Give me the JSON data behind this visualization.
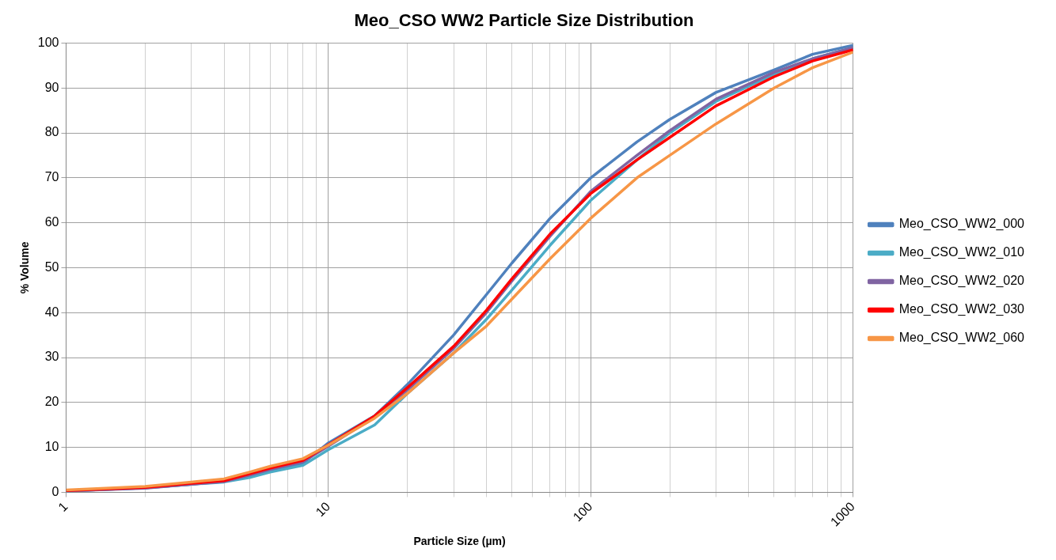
{
  "chart_data": {
    "type": "line",
    "title": "Meo_CSO WW2 Particle Size Distribution",
    "xlabel": "Particle Size (µm)",
    "ylabel": "% Volume",
    "log": "x",
    "x": [
      1,
      2,
      3,
      4,
      5,
      6,
      8,
      10,
      15,
      20,
      30,
      40,
      50,
      70,
      100,
      150,
      200,
      300,
      500,
      700,
      1000
    ],
    "xlim": [
      1,
      1000
    ],
    "xticks": [
      1,
      {
        "value": 2,
        "label": null
      },
      {
        "value": 3,
        "label": null
      },
      {
        "value": 4,
        "label": null
      },
      {
        "value": 5,
        "label": null
      },
      {
        "value": 6,
        "label": null
      },
      {
        "value": 7,
        "label": null
      },
      {
        "value": 8,
        "label": null
      },
      {
        "value": 9,
        "label": null
      },
      10,
      {
        "value": 20,
        "label": null
      },
      {
        "value": 30,
        "label": null
      },
      {
        "value": 40,
        "label": null
      },
      {
        "value": 50,
        "label": null
      },
      {
        "value": 60,
        "label": null
      },
      {
        "value": 70,
        "label": null
      },
      {
        "value": 80,
        "label": null
      },
      {
        "value": 90,
        "label": null
      },
      100,
      {
        "value": 200,
        "label": null
      },
      {
        "value": 300,
        "label": null
      },
      {
        "value": 400,
        "label": null
      },
      {
        "value": 500,
        "label": null
      },
      {
        "value": 600,
        "label": null
      },
      {
        "value": 700,
        "label": null
      },
      {
        "value": 800,
        "label": null
      },
      {
        "value": 900,
        "label": null
      },
      1000
    ],
    "ylim": [
      0,
      100
    ],
    "yticks": [
      0,
      10,
      20,
      30,
      40,
      50,
      60,
      70,
      80,
      90,
      100
    ],
    "grid": true,
    "legend": "right",
    "marker": "none",
    "line_style": "solid",
    "series": [
      {
        "name": "Meo_CSO_WW2_000",
        "color": "#4f81bd",
        "values": [
          0.3,
          1,
          1.8,
          2.5,
          3.5,
          4.8,
          6.5,
          11,
          17,
          24,
          35,
          44,
          51,
          61,
          70,
          78,
          83,
          89,
          94,
          97.5,
          99.5
        ]
      },
      {
        "name": "Meo_CSO_WW2_010",
        "color": "#4bacc6",
        "values": [
          0.3,
          1,
          1.8,
          2.3,
          3.3,
          4.5,
          6,
          9.5,
          15,
          22,
          31,
          38.5,
          45,
          55,
          65,
          74,
          80,
          87,
          93,
          96.5,
          99
        ]
      },
      {
        "name": "Meo_CSO_WW2_020",
        "color": "#8064a2",
        "values": [
          0.3,
          0.9,
          1.8,
          2.4,
          3.8,
          5.1,
          6.8,
          10.3,
          16.8,
          22.8,
          32,
          40,
          47,
          57,
          67,
          75,
          80.5,
          87.5,
          93.5,
          96.5,
          99
        ]
      },
      {
        "name": "Meo_CSO_WW2_030",
        "color": "#ff0000",
        "values": [
          0.4,
          1.1,
          2,
          2.6,
          4.1,
          5.4,
          7.1,
          10.6,
          17,
          23.3,
          32.5,
          40.5,
          47.5,
          57.5,
          66.5,
          74,
          79,
          86,
          92.5,
          96,
          98.5
        ]
      },
      {
        "name": "Meo_CSO_WW2_060",
        "color": "#f79646",
        "values": [
          0.5,
          1.3,
          2.3,
          3,
          4.5,
          5.8,
          7.5,
          10.5,
          16.5,
          22,
          31,
          37,
          43,
          52,
          61,
          70,
          75,
          82,
          90,
          94.5,
          98
        ]
      }
    ]
  }
}
